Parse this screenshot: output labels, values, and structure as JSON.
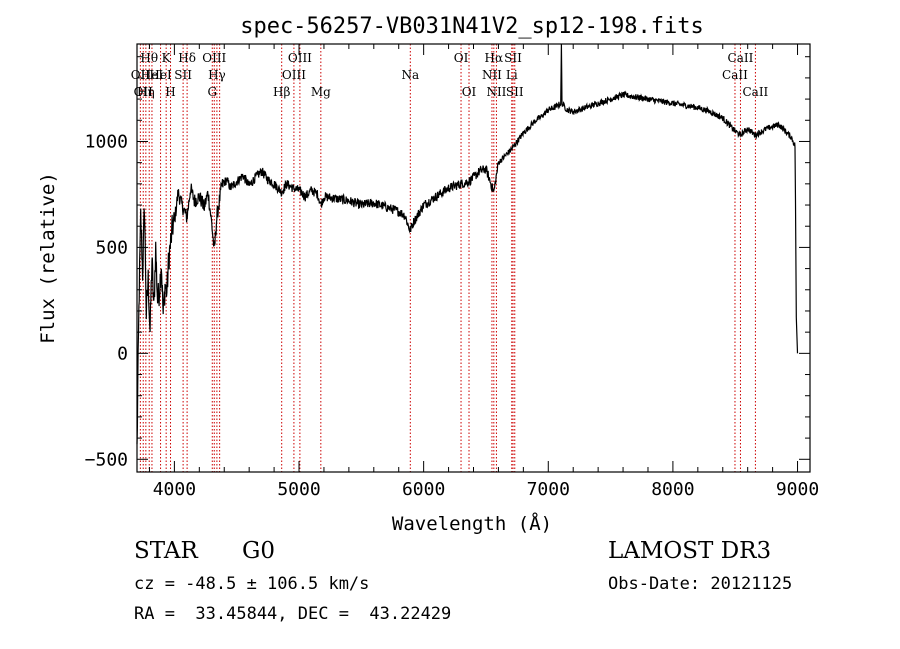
{
  "chart_data": {
    "type": "line",
    "title": "spec-56257-VB031N41V2_sp12-198.fits",
    "xlabel": "Wavelength (Å)",
    "ylabel": "Flux (relative)",
    "xlim": [
      3700,
      9100
    ],
    "ylim": [
      -560,
      1460
    ],
    "xticks": [
      4000,
      5000,
      6000,
      7000,
      8000,
      9000
    ],
    "yticks": [
      -500,
      0,
      500,
      1000
    ],
    "line_color": "#000000",
    "marker_color": "#cc0000",
    "spectrum": [
      [
        3700,
        -450
      ],
      [
        3715,
        200
      ],
      [
        3730,
        650
      ],
      [
        3745,
        380
      ],
      [
        3760,
        700
      ],
      [
        3775,
        180
      ],
      [
        3790,
        350
      ],
      [
        3805,
        100
      ],
      [
        3820,
        450
      ],
      [
        3835,
        200
      ],
      [
        3850,
        500
      ],
      [
        3865,
        250
      ],
      [
        3880,
        300
      ],
      [
        3895,
        430
      ],
      [
        3910,
        180
      ],
      [
        3925,
        320
      ],
      [
        3940,
        290
      ],
      [
        3955,
        450
      ],
      [
        3970,
        520
      ],
      [
        3985,
        600
      ],
      [
        4000,
        620
      ],
      [
        4030,
        760
      ],
      [
        4060,
        700
      ],
      [
        4101,
        640
      ],
      [
        4130,
        780
      ],
      [
        4160,
        720
      ],
      [
        4200,
        740
      ],
      [
        4240,
        690
      ],
      [
        4270,
        760
      ],
      [
        4300,
        610
      ],
      [
        4320,
        480
      ],
      [
        4340,
        640
      ],
      [
        4380,
        790
      ],
      [
        4420,
        820
      ],
      [
        4450,
        780
      ],
      [
        4500,
        810
      ],
      [
        4550,
        840
      ],
      [
        4600,
        790
      ],
      [
        4650,
        830
      ],
      [
        4700,
        860
      ],
      [
        4750,
        820
      ],
      [
        4800,
        800
      ],
      [
        4861,
        760
      ],
      [
        4900,
        800
      ],
      [
        4950,
        780
      ],
      [
        5000,
        770
      ],
      [
        5050,
        740
      ],
      [
        5100,
        770
      ],
      [
        5150,
        750
      ],
      [
        5175,
        700
      ],
      [
        5200,
        740
      ],
      [
        5300,
        730
      ],
      [
        5400,
        720
      ],
      [
        5500,
        700
      ],
      [
        5600,
        710
      ],
      [
        5700,
        690
      ],
      [
        5800,
        670
      ],
      [
        5850,
        650
      ],
      [
        5890,
        580
      ],
      [
        5920,
        620
      ],
      [
        6000,
        700
      ],
      [
        6100,
        740
      ],
      [
        6200,
        780
      ],
      [
        6300,
        800
      ],
      [
        6360,
        810
      ],
      [
        6400,
        830
      ],
      [
        6450,
        860
      ],
      [
        6500,
        870
      ],
      [
        6563,
        760
      ],
      [
        6600,
        900
      ],
      [
        6650,
        930
      ],
      [
        6700,
        960
      ],
      [
        6750,
        1000
      ],
      [
        6800,
        1040
      ],
      [
        6850,
        1070
      ],
      [
        6900,
        1100
      ],
      [
        6950,
        1120
      ],
      [
        7000,
        1150
      ],
      [
        7050,
        1160
      ],
      [
        7100,
        1180
      ],
      [
        7105,
        1460
      ],
      [
        7110,
        1180
      ],
      [
        7150,
        1150
      ],
      [
        7200,
        1140
      ],
      [
        7300,
        1160
      ],
      [
        7400,
        1180
      ],
      [
        7500,
        1200
      ],
      [
        7600,
        1220
      ],
      [
        7700,
        1210
      ],
      [
        7800,
        1200
      ],
      [
        7900,
        1190
      ],
      [
        8000,
        1180
      ],
      [
        8100,
        1170
      ],
      [
        8200,
        1160
      ],
      [
        8300,
        1140
      ],
      [
        8400,
        1110
      ],
      [
        8498,
        1050
      ],
      [
        8542,
        1030
      ],
      [
        8600,
        1060
      ],
      [
        8662,
        1030
      ],
      [
        8750,
        1060
      ],
      [
        8800,
        1070
      ],
      [
        8850,
        1080
      ],
      [
        8900,
        1050
      ],
      [
        8950,
        1020
      ],
      [
        8980,
        980
      ],
      [
        8990,
        170
      ],
      [
        9000,
        0
      ]
    ],
    "lines": [
      {
        "wave": 3727,
        "row": 1,
        "label": "OII"
      },
      {
        "wave": 3750,
        "row": 2,
        "label": "OII"
      },
      {
        "wave": 3771,
        "row": 2,
        "label": "Hη"
      },
      {
        "wave": 3798,
        "row": 0,
        "label": "Hθ"
      },
      {
        "wave": 3820,
        "row": 1,
        "label": "HeI"
      },
      {
        "wave": 3889,
        "row": 1,
        "label": "HeI"
      },
      {
        "wave": 3934,
        "row": 0,
        "label": "K"
      },
      {
        "wave": 3969,
        "row": 2,
        "label": "H"
      },
      {
        "wave": 4070,
        "row": 1,
        "label": "SII"
      },
      {
        "wave": 4102,
        "row": 0,
        "label": "Hδ"
      },
      {
        "wave": 4304,
        "row": 2,
        "label": "G"
      },
      {
        "wave": 4320,
        "row": 0,
        "label": "OIII"
      },
      {
        "wave": 4341,
        "row": 1,
        "label": "Hγ"
      },
      {
        "wave": 4363,
        "row": -1,
        "label": ""
      },
      {
        "wave": 4861,
        "row": 2,
        "label": "Hβ"
      },
      {
        "wave": 4959,
        "row": 1,
        "label": "OIII"
      },
      {
        "wave": 5007,
        "row": 0,
        "label": "OIII"
      },
      {
        "wave": 5175,
        "row": 2,
        "label": "Mg"
      },
      {
        "wave": 5893,
        "row": 1,
        "label": "Na"
      },
      {
        "wave": 6300,
        "row": 0,
        "label": "OI"
      },
      {
        "wave": 6364,
        "row": 2,
        "label": "OI"
      },
      {
        "wave": 6548,
        "row": 1,
        "label": "NII"
      },
      {
        "wave": 6563,
        "row": 0,
        "label": "Hα"
      },
      {
        "wave": 6584,
        "row": 2,
        "label": "NII"
      },
      {
        "wave": 6707,
        "row": 1,
        "label": "Li"
      },
      {
        "wave": 6717,
        "row": 0,
        "label": "SII"
      },
      {
        "wave": 6731,
        "row": 2,
        "label": "SII"
      },
      {
        "wave": 8498,
        "row": 1,
        "label": "CaII"
      },
      {
        "wave": 8542,
        "row": 0,
        "label": "CaII"
      },
      {
        "wave": 8662,
        "row": 2,
        "label": "CaII"
      }
    ]
  },
  "info": {
    "object_class": "STAR",
    "subclass": "G0",
    "survey": "LAMOST DR3",
    "redshift": "cz = -48.5 ± 106.5 km/s",
    "obs_date": "Obs-Date: 20121125",
    "coords": "RA =  33.45844, DEC =  43.22429"
  }
}
